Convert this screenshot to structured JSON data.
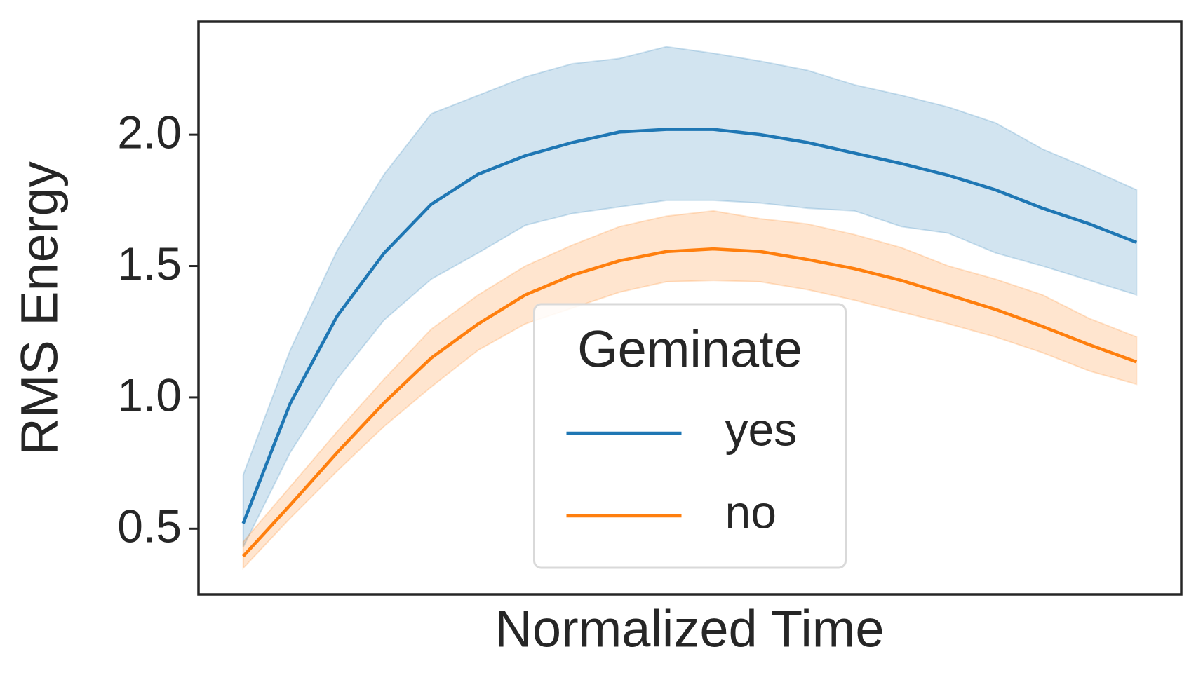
{
  "chart_data": {
    "type": "line",
    "x_label": "Normalized Time",
    "y_label": "RMS Energy",
    "x": [
      0,
      1,
      2,
      3,
      4,
      5,
      6,
      7,
      8,
      9,
      10,
      11,
      12,
      13,
      14,
      15,
      16,
      17,
      18,
      19
    ],
    "xlim": [
      -0.95,
      19.95
    ],
    "ylim": [
      0.25,
      2.43
    ],
    "yticks": [
      {
        "value": 0.5,
        "label": "0.5"
      },
      {
        "value": 1,
        "label": "1.0"
      },
      {
        "value": 1.5,
        "label": "1.5"
      },
      {
        "value": 2,
        "label": "2.0"
      }
    ],
    "legend_title": "Geminate",
    "legend": "lower center",
    "grid": false,
    "series": [
      {
        "name": "yes",
        "color": "#1f77b4",
        "values": [
          0.52,
          0.977,
          1.31,
          1.55,
          1.735,
          1.85,
          1.92,
          1.97,
          2.01,
          2.02,
          2.02,
          2.0,
          1.97,
          1.93,
          1.89,
          1.845,
          1.79,
          1.72,
          1.66,
          1.59
        ],
        "upper": [
          0.705,
          1.18,
          1.56,
          1.85,
          2.08,
          2.15,
          2.22,
          2.27,
          2.29,
          2.335,
          2.31,
          2.28,
          2.245,
          2.19,
          2.15,
          2.105,
          2.045,
          1.945,
          1.87,
          1.79
        ],
        "lower": [
          0.43,
          0.79,
          1.07,
          1.295,
          1.45,
          1.55,
          1.655,
          1.7,
          1.725,
          1.75,
          1.75,
          1.74,
          1.72,
          1.71,
          1.65,
          1.625,
          1.55,
          1.5,
          1.445,
          1.39
        ]
      },
      {
        "name": "no",
        "color": "#ff7f0e",
        "values": [
          0.395,
          0.59,
          0.79,
          0.98,
          1.15,
          1.28,
          1.39,
          1.465,
          1.52,
          1.555,
          1.565,
          1.555,
          1.525,
          1.49,
          1.445,
          1.39,
          1.335,
          1.27,
          1.2,
          1.135
        ],
        "upper": [
          0.45,
          0.66,
          0.87,
          1.07,
          1.26,
          1.39,
          1.5,
          1.58,
          1.65,
          1.69,
          1.71,
          1.68,
          1.66,
          1.62,
          1.57,
          1.5,
          1.45,
          1.39,
          1.3,
          1.23
        ],
        "lower": [
          0.35,
          0.54,
          0.72,
          0.89,
          1.04,
          1.18,
          1.28,
          1.34,
          1.4,
          1.44,
          1.445,
          1.44,
          1.41,
          1.37,
          1.325,
          1.28,
          1.23,
          1.17,
          1.1,
          1.05
        ]
      }
    ]
  }
}
